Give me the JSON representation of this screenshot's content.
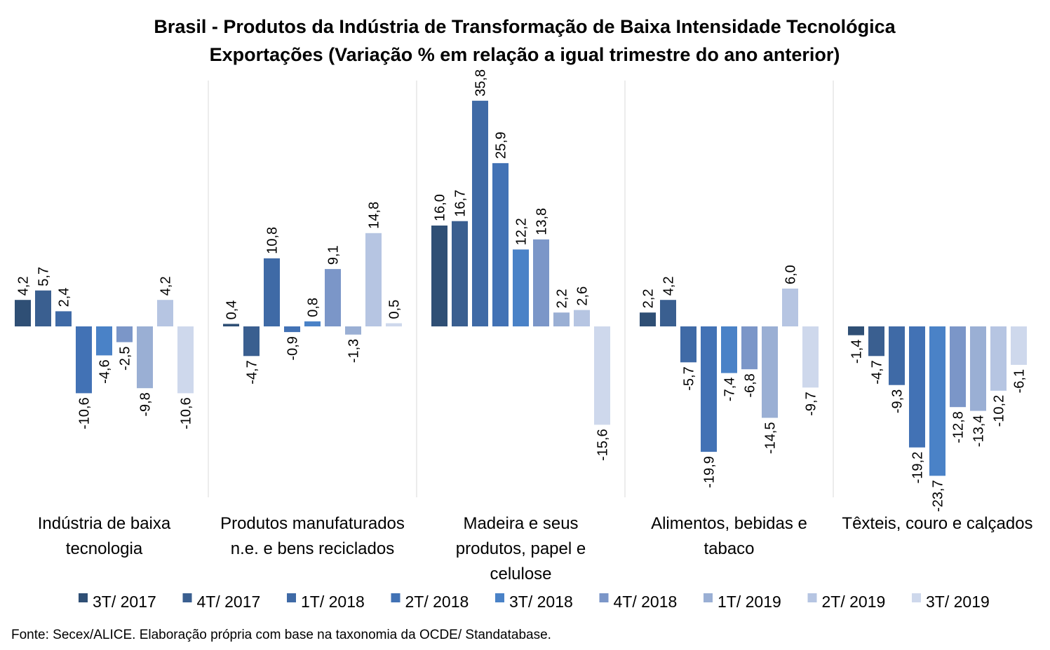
{
  "chart_data": {
    "type": "bar",
    "title": "Brasil - Produtos da Indústria de Transformação de Baixa Intensidade Tecnológica",
    "subtitle": "Exportações (Variação % em relação a igual trimestre do ano anterior)",
    "source": "Fonte: Secex/ALICE. Elaboração própria com base na taxonomia da OCDE/ Standatabase.",
    "categories": [
      [
        "Indústria de baixa",
        "tecnologia"
      ],
      [
        "Produtos manufaturados",
        "n.e. e bens reciclados"
      ],
      [
        "Madeira e seus",
        "produtos, papel e",
        "celulose"
      ],
      [
        "Alimentos, bebidas e",
        "tabaco"
      ],
      [
        "Têxteis, couro e calçados"
      ]
    ],
    "series": [
      {
        "name": "3T/ 2017",
        "color": "#2f4f75",
        "values": [
          4.2,
          0.4,
          16.0,
          2.2,
          -1.4
        ]
      },
      {
        "name": "4T/ 2017",
        "color": "#3a5f90",
        "values": [
          5.7,
          -4.7,
          16.7,
          4.2,
          -4.7
        ]
      },
      {
        "name": "1T/ 2018",
        "color": "#3f6aa6",
        "values": [
          2.4,
          10.8,
          35.8,
          -5.7,
          -9.3
        ]
      },
      {
        "name": "2T/ 2018",
        "color": "#4272b5",
        "values": [
          -10.6,
          -0.9,
          25.9,
          -19.9,
          -19.2
        ]
      },
      {
        "name": "3T/ 2018",
        "color": "#4a82c7",
        "values": [
          -4.6,
          0.8,
          12.2,
          -7.4,
          -23.7
        ]
      },
      {
        "name": "4T/ 2018",
        "color": "#7b96c8",
        "values": [
          -2.5,
          9.1,
          13.8,
          -6.8,
          -12.8
        ]
      },
      {
        "name": "1T/ 2019",
        "color": "#9aafd4",
        "values": [
          -9.8,
          -1.3,
          2.2,
          -14.5,
          -13.4
        ]
      },
      {
        "name": "2T/ 2019",
        "color": "#b6c5e2",
        "values": [
          4.2,
          14.8,
          2.6,
          6.0,
          -10.2
        ]
      },
      {
        "name": "3T/ 2019",
        "color": "#ced8ec",
        "values": [
          -10.6,
          0.5,
          -15.6,
          -9.7,
          -6.1
        ]
      }
    ],
    "value_labels": [
      [
        "4,2",
        "0,4",
        "16,0",
        "2,2",
        "-1,4"
      ],
      [
        "5,7",
        "-4,7",
        "16,7",
        "4,2",
        "-4,7"
      ],
      [
        "2,4",
        "10,8",
        "35,8",
        "-5,7",
        "-9,3"
      ],
      [
        "-10,6",
        "-0,9",
        "25,9",
        "-19,9",
        "-19,2"
      ],
      [
        "-4,6",
        "0,8",
        "12,2",
        "-7,4",
        "-23,7"
      ],
      [
        "-2,5",
        "9,1",
        "13,8",
        "-6,8",
        "-12,8"
      ],
      [
        "-9,8",
        "-1,3",
        "2,2",
        "-14,5",
        "-13,4"
      ],
      [
        "4,2",
        "14,8",
        "2,6",
        "6,0",
        "-10,2"
      ],
      [
        "-10,6",
        "0,5",
        "-15,6",
        "-9,7",
        "-6,1"
      ]
    ],
    "ylim": [
      -27,
      39
    ],
    "grid": false,
    "category_separators": true,
    "legend_position": "bottom"
  }
}
